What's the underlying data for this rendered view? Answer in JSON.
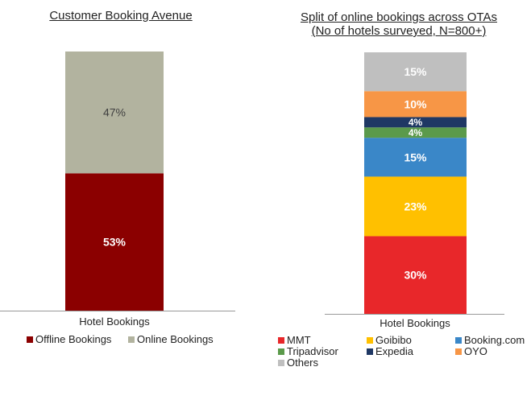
{
  "chart_data": [
    {
      "type": "bar",
      "stacked": true,
      "title": "Customer Booking Avenue",
      "categories": [
        "Hotel Bookings"
      ],
      "series": [
        {
          "name": "Offline Bookings",
          "values": [
            53
          ],
          "label": "53%",
          "color": "#8b0000",
          "label_color": "#ffffff"
        },
        {
          "name": "Online Bookings",
          "values": [
            47
          ],
          "label": "47%",
          "color": "#b2b39f",
          "label_color": "#404040"
        }
      ],
      "ylim": [
        0,
        100
      ],
      "legend_position": "bottom"
    },
    {
      "type": "bar",
      "stacked": true,
      "title": "Split of online bookings across OTAs\n(No of hotels surveyed, N=800+)",
      "categories": [
        "Hotel Bookings"
      ],
      "series": [
        {
          "name": "MMT",
          "values": [
            30
          ],
          "label": "30%",
          "color": "#e8272a",
          "label_color": "#ffffff"
        },
        {
          "name": "Goibibo",
          "values": [
            23
          ],
          "label": "23%",
          "color": "#ffc000",
          "label_color": "#ffffff"
        },
        {
          "name": "Booking.com",
          "values": [
            15
          ],
          "label": "15%",
          "color": "#3a87c8",
          "label_color": "#ffffff"
        },
        {
          "name": "Tripadvisor",
          "values": [
            4
          ],
          "label": "4%",
          "color": "#5b9a4b",
          "label_color": "#ffffff"
        },
        {
          "name": "Expedia",
          "values": [
            4
          ],
          "label": "4%",
          "color": "#1f3864",
          "label_color": "#ffffff"
        },
        {
          "name": "OYO",
          "values": [
            10
          ],
          "label": "10%",
          "color": "#f79646",
          "label_color": "#ffffff"
        },
        {
          "name": "Others",
          "values": [
            15
          ],
          "label": "15%",
          "color": "#bfbfbf",
          "label_color": "#ffffff"
        }
      ],
      "ylim": [
        0,
        101
      ],
      "legend_position": "bottom"
    }
  ]
}
